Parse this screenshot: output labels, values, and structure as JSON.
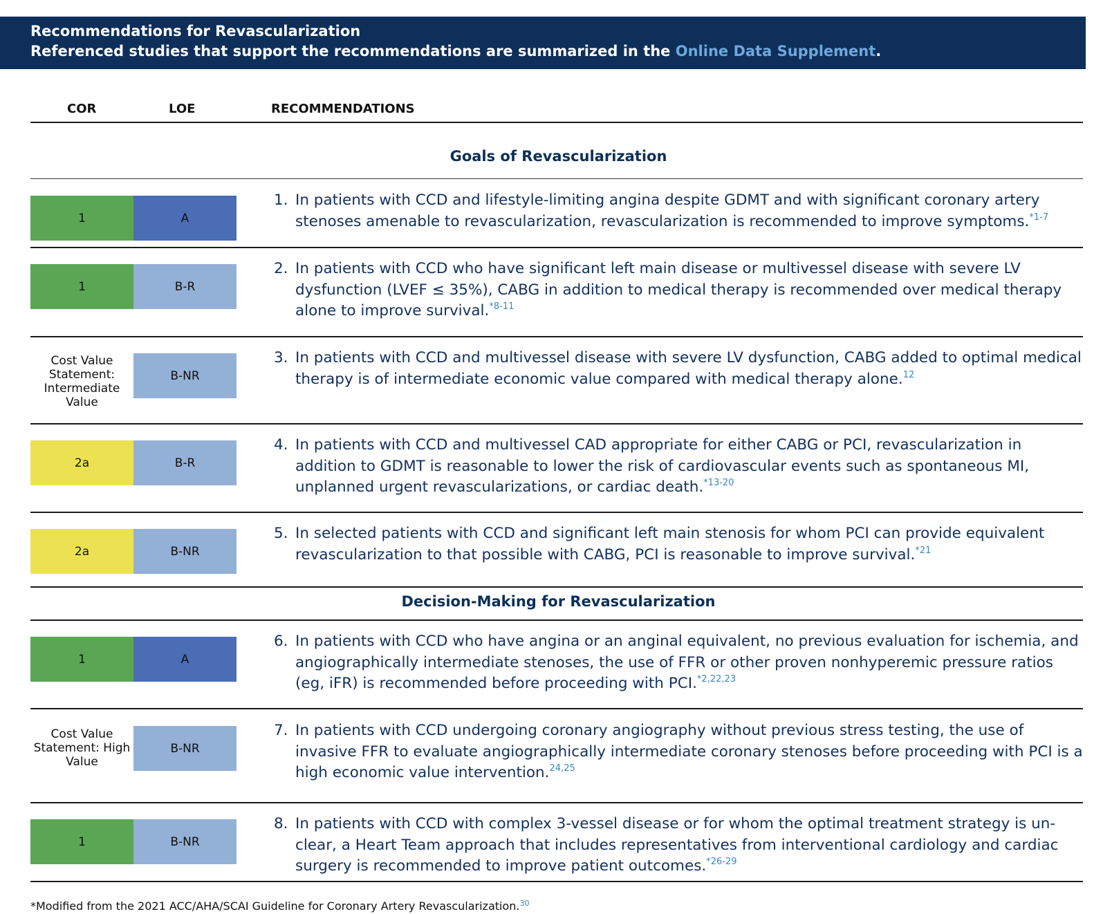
{
  "banner": {
    "title": "Recommendations for Revascularization",
    "subtitle_prefix": "Referenced studies that support the recommendations are summarized in the ",
    "subtitle_link": "Online Data Supplement",
    "subtitle_suffix": "."
  },
  "columns": {
    "cor": "COR",
    "loe": "LOE",
    "recommendations": "RECOMMENDATIONS"
  },
  "sections": {
    "goals": "Goals of Revascularization",
    "decision": "Decision-Making for Revascularization"
  },
  "colors": {
    "banner": "#0d2f5a",
    "cor_1": "#5aa655",
    "cor_2a": "#ece151",
    "loe_a": "#4a6db5",
    "loe_b": "#93b0d6",
    "reference": "#3b86c4"
  },
  "recommendations": [
    {
      "number": "1.",
      "cor": "1",
      "loe": "A",
      "text": "In patients with CCD and lifestyle-limiting angina despite GDMT and with significant coronary artery stenoses amenable to revascularization, revascularization is recommended to improve symptoms.",
      "refs": "*1-7"
    },
    {
      "number": "2.",
      "cor": "1",
      "loe": "B-R",
      "text": "In patients with CCD who have significant left main disease or multivessel disease with severe LV dysfunction (LVEF ≤ 35%), CABG in addition to medical therapy is recommended over medical therapy alone to improve survival.",
      "refs": "*8-11"
    },
    {
      "number": "3.",
      "cor": "Cost Value Statement: Intermediate Value",
      "loe": "B-NR",
      "text": "In patients with CCD and multivessel disease with severe LV dysfunction, CABG added to optimal medical therapy is of intermediate economic value compared with medical therapy alone.",
      "refs": "12"
    },
    {
      "number": "4.",
      "cor": "2a",
      "loe": "B-R",
      "text": "In patients with CCD and multivessel CAD appropriate for either CABG or PCI, revascularization in addition to GDMT is reasonable to lower the risk of cardiovascular events such as spontaneous MI, unplanned urgent revascularizations, or cardiac death.",
      "refs": "*13-20"
    },
    {
      "number": "5.",
      "cor": "2a",
      "loe": "B-NR",
      "text": "In selected patients with CCD and significant left main stenosis for whom PCI can provide equivalent revascularization to that possible with CABG, PCI is reasonable to improve survival.",
      "refs": "*21"
    },
    {
      "number": "6.",
      "cor": "1",
      "loe": "A",
      "text": "In patients with CCD who have angina or an anginal equivalent, no previous evaluation for ischemia, and angiographically intermediate stenoses, the use of FFR or other proven nonhyperemic pressure ratios (eg, iFR) is recommended before proceeding with PCI.",
      "refs": "*2,22,23"
    },
    {
      "number": "7.",
      "cor": "Cost Value Statement: High Value",
      "loe": "B-NR",
      "text": "In patients with CCD undergoing coronary angiography without previous stress testing, the use of invasive FFR to evaluate angiographically intermediate coronary stenoses before proceeding with PCI is a high economic value intervention.",
      "refs": "24,25"
    },
    {
      "number": "8.",
      "cor": "1",
      "loe": "B-NR",
      "text": "In patients with CCD with complex 3-vessel disease or for whom the optimal treatment strategy is un-clear, a Heart Team approach that includes representatives from interventional cardiology and cardiac surgery is recommended to improve patient outcomes.",
      "refs": "*26-29"
    }
  ],
  "footnote": {
    "text": "*Modified from the 2021 ACC/AHA/SCAI Guideline for Coronary Artery Revascularization.",
    "ref": "30"
  }
}
